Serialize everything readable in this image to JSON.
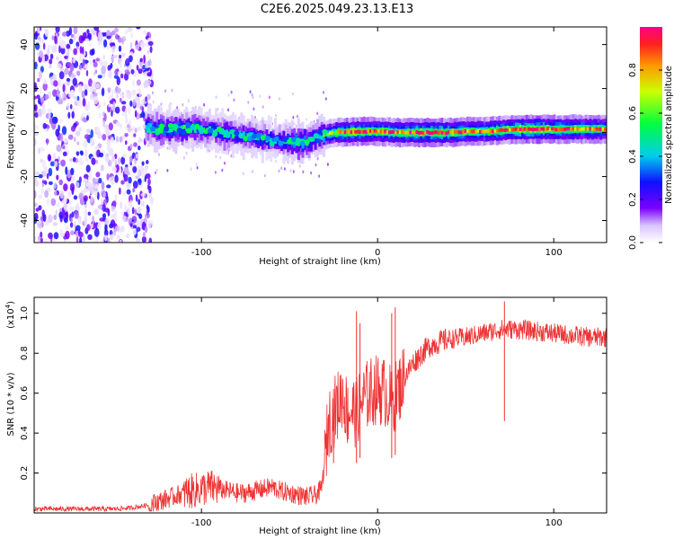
{
  "title": "C2E6.2025.049.23.13.E13",
  "colors": {
    "snr_line": "#ee3333",
    "frame": "#000000",
    "background": "#ffffff"
  },
  "chart_data": [
    {
      "type": "heatmap",
      "name": "spectrogram",
      "xlabel": "Height of straight line (km)",
      "ylabel": "Frequency (Hz)",
      "xlim": [
        -195,
        130
      ],
      "ylim": [
        -50,
        48
      ],
      "xticks": [
        -100,
        0,
        100
      ],
      "xtick_labels": [
        "-100",
        "0",
        "100"
      ],
      "yticks": [
        -40,
        -20,
        0,
        20,
        40
      ],
      "ytick_labels": [
        "-40",
        "-20",
        "0",
        "20",
        "40"
      ],
      "colorbar": {
        "label": "Normalized spectral amplitude",
        "range": [
          0.0,
          1.0
        ],
        "ticks": [
          0.0,
          0.2,
          0.4,
          0.6,
          0.8
        ],
        "tick_labels": [
          "0.0",
          "0.2",
          "0.4",
          "0.6",
          "0.8"
        ],
        "colormap": "rainbow"
      },
      "features": [
        {
          "x_range": [
            -195,
            -130
          ],
          "description_values": "broadband noise, amplitude ~0.05-0.3, frequency -50 to 48 Hz"
        },
        {
          "x_range": [
            -130,
            -30
          ],
          "center_freq_hz": [
            2,
            0,
            -3,
            -6,
            -3
          ],
          "amplitude": 0.45
        },
        {
          "x_range": [
            -30,
            130
          ],
          "center_freq_hz": [
            0,
            0,
            1,
            2,
            2
          ],
          "amplitude": 0.85
        }
      ],
      "ridge": {
        "x": [
          -132,
          -125,
          -115,
          -105,
          -95,
          -85,
          -75,
          -65,
          -60,
          -55,
          -50,
          -45,
          -40,
          -35,
          -30,
          -25,
          -20,
          -10,
          0,
          10,
          20,
          30,
          40,
          50,
          60,
          70,
          80,
          90,
          100,
          110,
          120,
          130
        ],
        "freq": [
          2.5,
          1.5,
          1.5,
          2.0,
          1.0,
          -0.5,
          -1.5,
          -2.5,
          -3.5,
          -4.0,
          -4.0,
          -4.5,
          -4.0,
          -2.0,
          -1.0,
          0.0,
          0.0,
          0.5,
          0.5,
          0.0,
          0.0,
          0.0,
          0.0,
          0.5,
          0.5,
          1.0,
          1.5,
          1.5,
          1.5,
          1.5,
          1.5,
          1.5
        ],
        "amp": [
          0.45,
          0.5,
          0.5,
          0.5,
          0.45,
          0.45,
          0.45,
          0.45,
          0.4,
          0.45,
          0.5,
          0.55,
          0.5,
          0.45,
          0.55,
          0.75,
          0.9,
          0.9,
          0.85,
          0.85,
          0.9,
          0.95,
          0.9,
          0.85,
          0.8,
          0.85,
          0.95,
          0.95,
          0.9,
          0.85,
          0.8,
          0.8
        ]
      }
    },
    {
      "type": "line",
      "name": "snr",
      "xlabel": "Height of straight line (km)",
      "ylabel": "SNR (10 * v/v)",
      "y_multiplier_label": "(x10",
      "y_multiplier_exp": "4",
      "y_multiplier_close": ")",
      "xlim": [
        -195,
        130
      ],
      "ylim": [
        0,
        1.08
      ],
      "xticks": [
        -100,
        0,
        100
      ],
      "xtick_labels": [
        "-100",
        "0",
        "100"
      ],
      "yticks": [
        0.2,
        0.4,
        0.6,
        0.8,
        1.0
      ],
      "ytick_labels": [
        "0.2",
        "0.4",
        "0.6",
        "0.8",
        "1.0"
      ],
      "series": [
        {
          "name": "SNR",
          "x": [
            -195,
            -180,
            -165,
            -150,
            -140,
            -130,
            -120,
            -110,
            -100,
            -95,
            -90,
            -85,
            -80,
            -75,
            -70,
            -65,
            -60,
            -55,
            -50,
            -45,
            -40,
            -35,
            -32,
            -30,
            -28,
            -25,
            -22,
            -20,
            -17,
            -15,
            -12,
            -10,
            -5,
            0,
            5,
            8,
            10,
            12,
            15,
            18,
            20,
            25,
            30,
            40,
            50,
            60,
            70,
            80,
            90,
            100,
            110,
            120,
            130
          ],
          "y": [
            0.02,
            0.02,
            0.02,
            0.02,
            0.025,
            0.04,
            0.07,
            0.1,
            0.12,
            0.13,
            0.12,
            0.11,
            0.1,
            0.1,
            0.11,
            0.12,
            0.13,
            0.11,
            0.1,
            0.09,
            0.08,
            0.09,
            0.12,
            0.25,
            0.45,
            0.5,
            0.55,
            0.6,
            0.5,
            0.52,
            0.5,
            0.55,
            0.6,
            0.62,
            0.6,
            0.55,
            0.58,
            0.62,
            0.68,
            0.72,
            0.75,
            0.8,
            0.84,
            0.87,
            0.88,
            0.9,
            0.92,
            0.92,
            0.91,
            0.9,
            0.89,
            0.88,
            0.88
          ]
        }
      ],
      "spikes": {
        "x": [
          -25,
          -12,
          -10,
          8,
          10,
          72
        ],
        "y": [
          0.52,
          1.01,
          0.95,
          1.0,
          1.03,
          1.06
        ]
      }
    }
  ]
}
